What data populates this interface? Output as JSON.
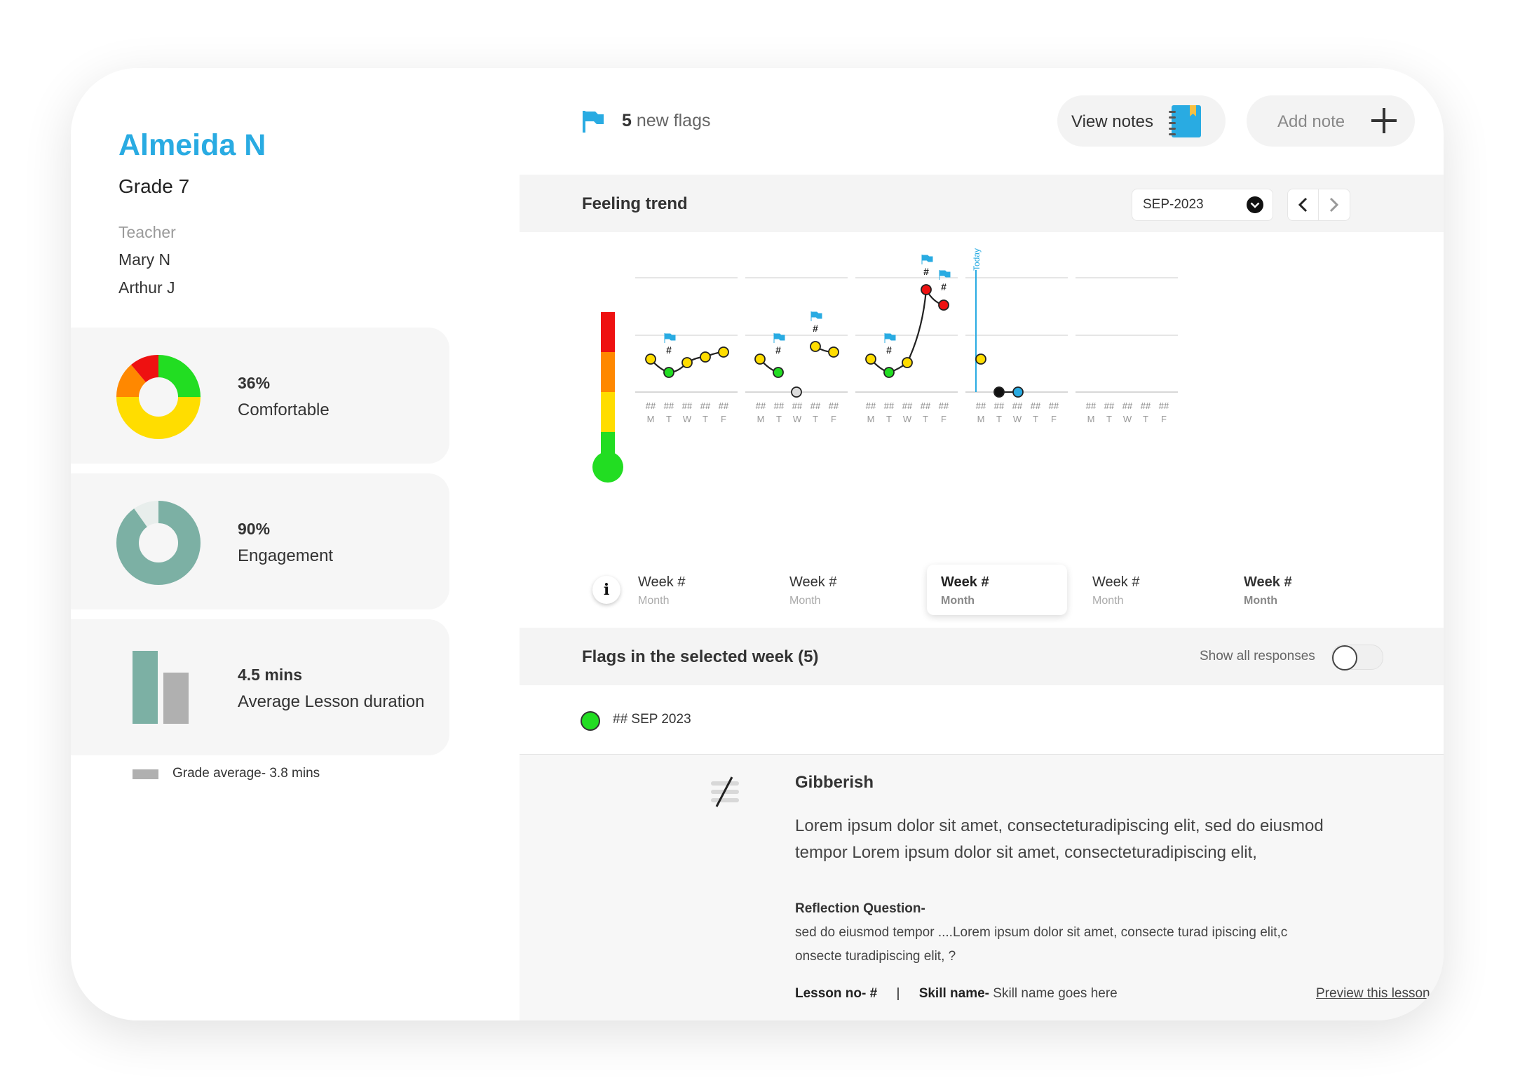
{
  "student": {
    "name": "Almeida N",
    "grade": "Grade 7",
    "teacher_label": "Teacher",
    "teachers": [
      "Mary N",
      "Arthur J"
    ]
  },
  "stats": {
    "comfort": {
      "value": "36%",
      "label": "Comfortable"
    },
    "engagement": {
      "value": "90%",
      "label": "Engagement"
    },
    "duration": {
      "value": "4.5 mins",
      "label": "Average Lesson duration",
      "grade_average": "Grade average- 3.8 mins"
    }
  },
  "header": {
    "flags_count": "5",
    "flags_text": "new flags",
    "view_notes": "View notes",
    "add_note": "Add note"
  },
  "feeling_trend": {
    "title": "Feeling trend",
    "month": "SEP-2023",
    "today_label": "Today",
    "day_number": "##",
    "days": [
      "M",
      "T",
      "W",
      "T",
      "F"
    ],
    "weeks": [
      {
        "title": "Week #",
        "subtitle": "Month"
      },
      {
        "title": "Week #",
        "subtitle": "Month"
      },
      {
        "title": "Week #",
        "subtitle": "Month"
      },
      {
        "title": "Week #",
        "subtitle": "Month"
      },
      {
        "title": "Week #",
        "subtitle": "Month"
      }
    ],
    "flag_marker": "#"
  },
  "flags_section": {
    "title": "Flags in the selected week (5)",
    "toggle_label": "Show all responses",
    "entry_date": "## SEP 2023"
  },
  "response": {
    "title": "Gibberish",
    "text": "Lorem ipsum dolor sit amet, consecteturadipiscing elit, sed do eiusmod tempor Lorem ipsum dolor sit amet, consecteturadipiscing elit,",
    "question_label": "Reflection Question-",
    "question_line1": "sed do eiusmod tempor ....Lorem ipsum dolor sit amet, consecte turad ipiscing elit,c",
    "question_line2": "onsecte turadipiscing elit, ?",
    "lesson_label": "Lesson no- #",
    "separator": "|",
    "skill_label": "Skill name-",
    "skill_value": "Skill name goes here",
    "preview_link": "Preview this lesson"
  },
  "colors": {
    "accent_blue": "#29abe2",
    "green": "#22dd22",
    "yellow": "#ffdd00",
    "red": "#ee1111",
    "orange": "#ff8800",
    "teal": "#7cb0a4",
    "gray": "#b0b0b0"
  },
  "icons": [
    "flag-icon",
    "notebook-icon",
    "plus-icon",
    "chevron-down-icon",
    "chevron-left-icon",
    "chevron-right-icon",
    "info-icon",
    "caret-down-icon",
    "no-response-icon"
  ]
}
